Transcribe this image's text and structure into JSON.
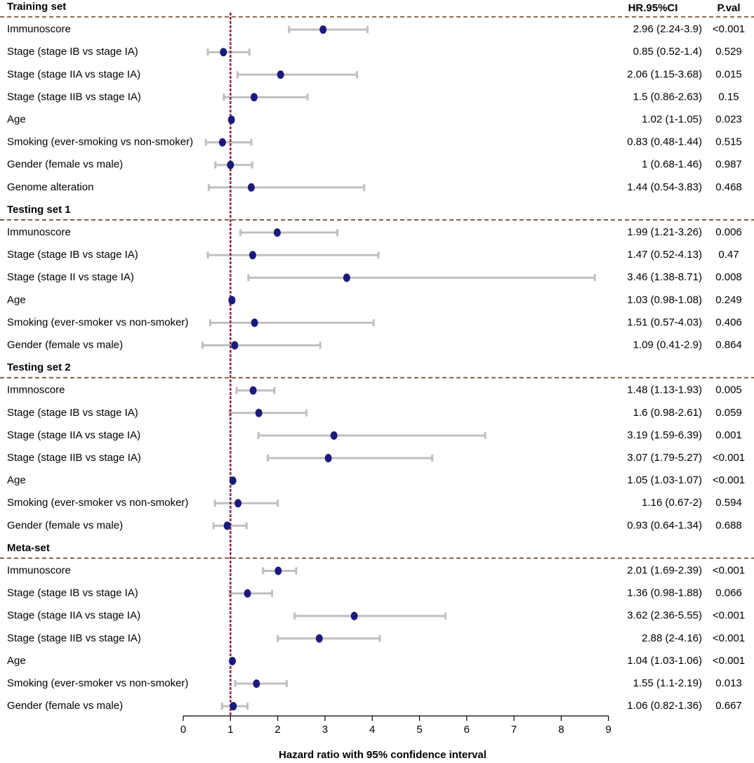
{
  "chart_data": {
    "type": "forest",
    "xlabel": "Hazard ratio with 95% confidence interval",
    "xlim": [
      0,
      9
    ],
    "xticks": [
      0,
      1,
      2,
      3,
      4,
      5,
      6,
      7,
      8,
      9
    ],
    "reference_line": 1,
    "column_headers": {
      "hr": "HR.95%CI",
      "p": "P.val"
    },
    "colors": {
      "point": "#1a1a7e",
      "ci": "#bfbfbf",
      "ref_line": "#8b1a3a",
      "separator": "#6b3a1a"
    },
    "sections": [
      {
        "title": "Training set",
        "rows": [
          {
            "label": "Immunoscore",
            "hr": 2.96,
            "lo": 2.24,
            "hi": 3.9,
            "hr_text": "2.96 (2.24-3.9)",
            "p": "<0.001"
          },
          {
            "label": "Stage (stage IB vs stage IA)",
            "hr": 0.85,
            "lo": 0.52,
            "hi": 1.4,
            "hr_text": "0.85 (0.52-1.4)",
            "p": "0.529"
          },
          {
            "label": "Stage (stage IIA vs stage IA)",
            "hr": 2.06,
            "lo": 1.15,
            "hi": 3.68,
            "hr_text": "2.06 (1.15-3.68)",
            "p": "0.015"
          },
          {
            "label": "Stage (stage IIB vs stage IA)",
            "hr": 1.5,
            "lo": 0.86,
            "hi": 2.63,
            "hr_text": "1.5 (0.86-2.63)",
            "p": "0.15"
          },
          {
            "label": "Age",
            "hr": 1.02,
            "lo": 1.0,
            "hi": 1.05,
            "hr_text": "1.02 (1-1.05)",
            "p": "0.023"
          },
          {
            "label": "Smoking (ever-smoking vs non-smoker)",
            "hr": 0.83,
            "lo": 0.48,
            "hi": 1.44,
            "hr_text": "0.83 (0.48-1.44)",
            "p": "0.515"
          },
          {
            "label": "Gender (female vs male)",
            "hr": 1.0,
            "lo": 0.68,
            "hi": 1.46,
            "hr_text": "1 (0.68-1.46)",
            "p": "0.987"
          },
          {
            "label": "Genome alteration",
            "hr": 1.44,
            "lo": 0.54,
            "hi": 3.83,
            "hr_text": "1.44 (0.54-3.83)",
            "p": "0.468"
          }
        ]
      },
      {
        "title": "Testing set 1",
        "rows": [
          {
            "label": "Immunoscore",
            "hr": 1.99,
            "lo": 1.21,
            "hi": 3.26,
            "hr_text": "1.99 (1.21-3.26)",
            "p": "0.006"
          },
          {
            "label": "Stage (stage IB vs stage IA)",
            "hr": 1.47,
            "lo": 0.52,
            "hi": 4.13,
            "hr_text": "1.47 (0.52-4.13)",
            "p": "0.47"
          },
          {
            "label": "Stage (stage II vs stage IA)",
            "hr": 3.46,
            "lo": 1.38,
            "hi": 8.71,
            "hr_text": "3.46 (1.38-8.71)",
            "p": "0.008"
          },
          {
            "label": "Age",
            "hr": 1.03,
            "lo": 0.98,
            "hi": 1.08,
            "hr_text": "1.03 (0.98-1.08)",
            "p": "0.249"
          },
          {
            "label": "Smoking (ever-smoker vs non-smoker)",
            "hr": 1.51,
            "lo": 0.57,
            "hi": 4.03,
            "hr_text": "1.51 (0.57-4.03)",
            "p": "0.406"
          },
          {
            "label": "Gender (female vs male)",
            "hr": 1.09,
            "lo": 0.41,
            "hi": 2.9,
            "hr_text": "1.09 (0.41-2.9)",
            "p": "0.864"
          }
        ]
      },
      {
        "title": "Testing set 2",
        "rows": [
          {
            "label": "Immnoscore",
            "hr": 1.48,
            "lo": 1.13,
            "hi": 1.93,
            "hr_text": "1.48 (1.13-1.93)",
            "p": "0.005"
          },
          {
            "label": "Stage (stage IB vs stage IA)",
            "hr": 1.6,
            "lo": 0.98,
            "hi": 2.61,
            "hr_text": "1.6 (0.98-2.61)",
            "p": "0.059"
          },
          {
            "label": "Stage (stage IIA vs stage IA)",
            "hr": 3.19,
            "lo": 1.59,
            "hi": 6.39,
            "hr_text": "3.19 (1.59-6.39)",
            "p": "0.001"
          },
          {
            "label": "Stage (stage IIB vs stage IA)",
            "hr": 3.07,
            "lo": 1.79,
            "hi": 5.27,
            "hr_text": "3.07 (1.79-5.27)",
            "p": "<0.001"
          },
          {
            "label": "Age",
            "hr": 1.05,
            "lo": 1.03,
            "hi": 1.07,
            "hr_text": "1.05 (1.03-1.07)",
            "p": "<0.001"
          },
          {
            "label": "Smoking (ever-smoker vs non-smoker)",
            "hr": 1.16,
            "lo": 0.67,
            "hi": 2.0,
            "hr_text": "1.16 (0.67-2)",
            "p": "0.594"
          },
          {
            "label": "Gender (female vs male)",
            "hr": 0.93,
            "lo": 0.64,
            "hi": 1.34,
            "hr_text": "0.93 (0.64-1.34)",
            "p": "0.688"
          }
        ]
      },
      {
        "title": "Meta-set",
        "rows": [
          {
            "label": "Immunoscore",
            "hr": 2.01,
            "lo": 1.69,
            "hi": 2.39,
            "hr_text": "2.01 (1.69-2.39)",
            "p": "<0.001"
          },
          {
            "label": "Stage (stage IB vs stage IA)",
            "hr": 1.36,
            "lo": 0.98,
            "hi": 1.88,
            "hr_text": "1.36 (0.98-1.88)",
            "p": "0.066"
          },
          {
            "label": "Stage (stage IIA vs stage IA)",
            "hr": 3.62,
            "lo": 2.36,
            "hi": 5.55,
            "hr_text": "3.62 (2.36-5.55)",
            "p": "<0.001"
          },
          {
            "label": "Stage (stage IIB vs stage IA)",
            "hr": 2.88,
            "lo": 2.0,
            "hi": 4.16,
            "hr_text": "2.88 (2-4.16)",
            "p": "<0.001"
          },
          {
            "label": "Age",
            "hr": 1.04,
            "lo": 1.03,
            "hi": 1.06,
            "hr_text": "1.04 (1.03-1.06)",
            "p": "<0.001"
          },
          {
            "label": "Smoking (ever-smoker vs non-smoker)",
            "hr": 1.55,
            "lo": 1.1,
            "hi": 2.19,
            "hr_text": "1.55 (1.1-2.19)",
            "p": "0.013"
          },
          {
            "label": "Gender (female vs male)",
            "hr": 1.06,
            "lo": 0.82,
            "hi": 1.36,
            "hr_text": "1.06 (0.82-1.36)",
            "p": "0.667"
          }
        ]
      }
    ]
  }
}
